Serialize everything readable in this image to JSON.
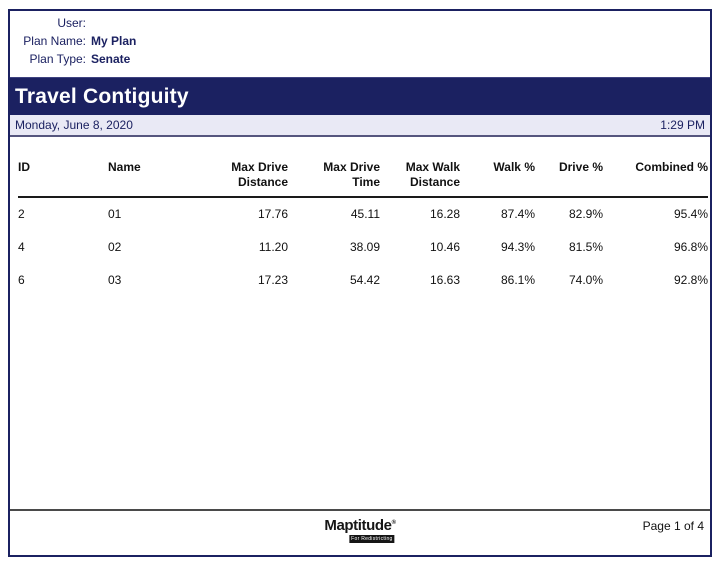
{
  "meta": {
    "user_label": "User:",
    "user_value": "",
    "plan_name_label": "Plan Name:",
    "plan_name_value": "My Plan",
    "plan_type_label": "Plan Type:",
    "plan_type_value": "Senate"
  },
  "header": {
    "title": "Travel Contiguity",
    "date": "Monday, June 8, 2020",
    "time": "1:29 PM"
  },
  "table": {
    "columns": [
      "ID",
      "Name",
      "Max Drive\nDistance",
      "Max Drive\nTime",
      "Max Walk\nDistance",
      "Walk %",
      "Drive %",
      "Combined %"
    ],
    "rows": [
      [
        "2",
        "01",
        "17.76",
        "45.11",
        "16.28",
        "87.4%",
        "82.9%",
        "95.4%"
      ],
      [
        "4",
        "02",
        "11.20",
        "38.09",
        "10.46",
        "94.3%",
        "81.5%",
        "96.8%"
      ],
      [
        "6",
        "03",
        "17.23",
        "54.42",
        "16.63",
        "86.1%",
        "74.0%",
        "92.8%"
      ]
    ]
  },
  "footer": {
    "logo_text": "Maptitude",
    "logo_reg": "®",
    "logo_subtext": "For Redistricting",
    "page_label": "Page 1 of 4"
  },
  "colors": {
    "navy": "#1b2161",
    "date_bar_bg": "#e9e9f5",
    "date_bar_border": "#56567e",
    "footer_line": "#4a4a4a"
  }
}
